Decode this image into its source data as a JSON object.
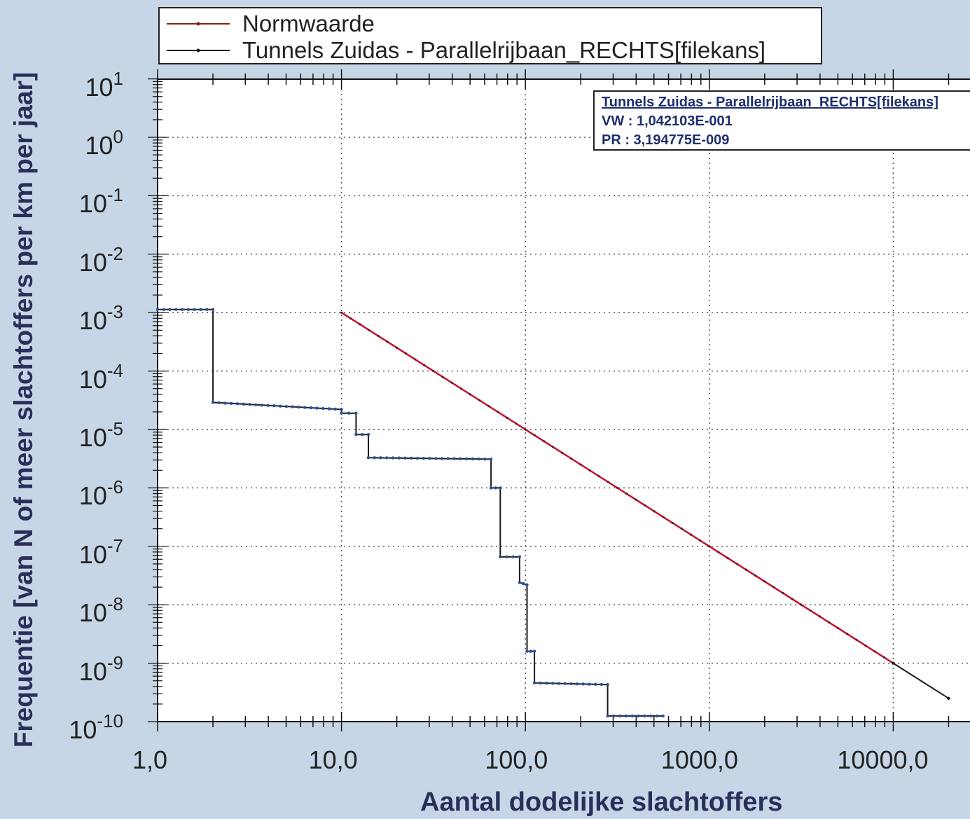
{
  "chart_data": {
    "type": "line",
    "xlabel": "Aantal dodelijke slachtoffers",
    "ylabel": "Frequentie [van N of meer slachtoffers per km per jaar]",
    "x_scale": "log",
    "y_scale": "log",
    "xlim": [
      1,
      20000
    ],
    "ylim": [
      1e-10,
      10
    ],
    "x_ticks": [
      1,
      10,
      100,
      1000,
      10000
    ],
    "x_tick_labels": [
      "1,0",
      "10,0",
      "100,0",
      "1000,0",
      "10000,0"
    ],
    "y_ticks": [
      10,
      1,
      0.1,
      0.01,
      0.001,
      0.0001,
      1e-05,
      1e-06,
      1e-07,
      1e-08,
      1e-09,
      1e-10
    ],
    "y_tick_labels": [
      {
        "base": "10",
        "exp": "1"
      },
      {
        "base": "10",
        "exp": "0"
      },
      {
        "base": "10",
        "exp": "-1"
      },
      {
        "base": "10",
        "exp": "-2"
      },
      {
        "base": "10",
        "exp": "-3"
      },
      {
        "base": "10",
        "exp": "-4"
      },
      {
        "base": "10",
        "exp": "-5"
      },
      {
        "base": "10",
        "exp": "-6"
      },
      {
        "base": "10",
        "exp": "-7"
      },
      {
        "base": "10",
        "exp": "-8"
      },
      {
        "base": "10",
        "exp": "-9"
      },
      {
        "base": "10",
        "exp": "-10"
      }
    ],
    "grid": true,
    "legend_position": "top",
    "series": [
      {
        "name": "Normwaarde",
        "color": "#c8102e",
        "style": "line",
        "points": [
          [
            10,
            0.001
          ],
          [
            10000,
            1e-09
          ]
        ]
      },
      {
        "name": "Tunnels Zuidas - Parallelrijbaan_RECHTS[filekans]",
        "color": "#1a1a1a",
        "style": "step",
        "points": [
          [
            1,
            0.00113
          ],
          [
            2,
            0.00113
          ],
          [
            2,
            2.9e-05
          ],
          [
            10,
            2.2e-05
          ],
          [
            10,
            1.9e-05
          ],
          [
            12,
            1.9e-05
          ],
          [
            12,
            8.2e-06
          ],
          [
            14,
            8.2e-06
          ],
          [
            14,
            3.3e-06
          ],
          [
            65,
            3.1e-06
          ],
          [
            65,
            1e-06
          ],
          [
            73,
            1e-06
          ],
          [
            73,
            6.6e-08
          ],
          [
            93,
            6.6e-08
          ],
          [
            93,
            2.4e-08
          ],
          [
            102,
            2.2e-08
          ],
          [
            102,
            1.6e-09
          ],
          [
            112,
            1.6e-09
          ],
          [
            112,
            4.6e-10
          ],
          [
            280,
            4.3e-10
          ],
          [
            280,
            1.25e-10
          ],
          [
            560,
            1.25e-10
          ]
        ]
      },
      {
        "name": "",
        "color": "#1a1a1a",
        "style": "line",
        "points": [
          [
            10000,
            1e-09
          ],
          [
            20000,
            2.5e-10
          ]
        ]
      }
    ]
  },
  "infobox": {
    "title": "Tunnels Zuidas - Parallelrijbaan_RECHTS[filekans]",
    "vw": "VW : 1,042103E-001",
    "pr": "PR : 3,194775E-009"
  },
  "colors": {
    "background": "#c7d6e6",
    "plot_background": "#ffffff",
    "normwaarde": "#c8102e",
    "tunnels": "#1a1a1a",
    "marker_blue": "#2b4f9a",
    "axis_text": "#2a2f5a"
  }
}
